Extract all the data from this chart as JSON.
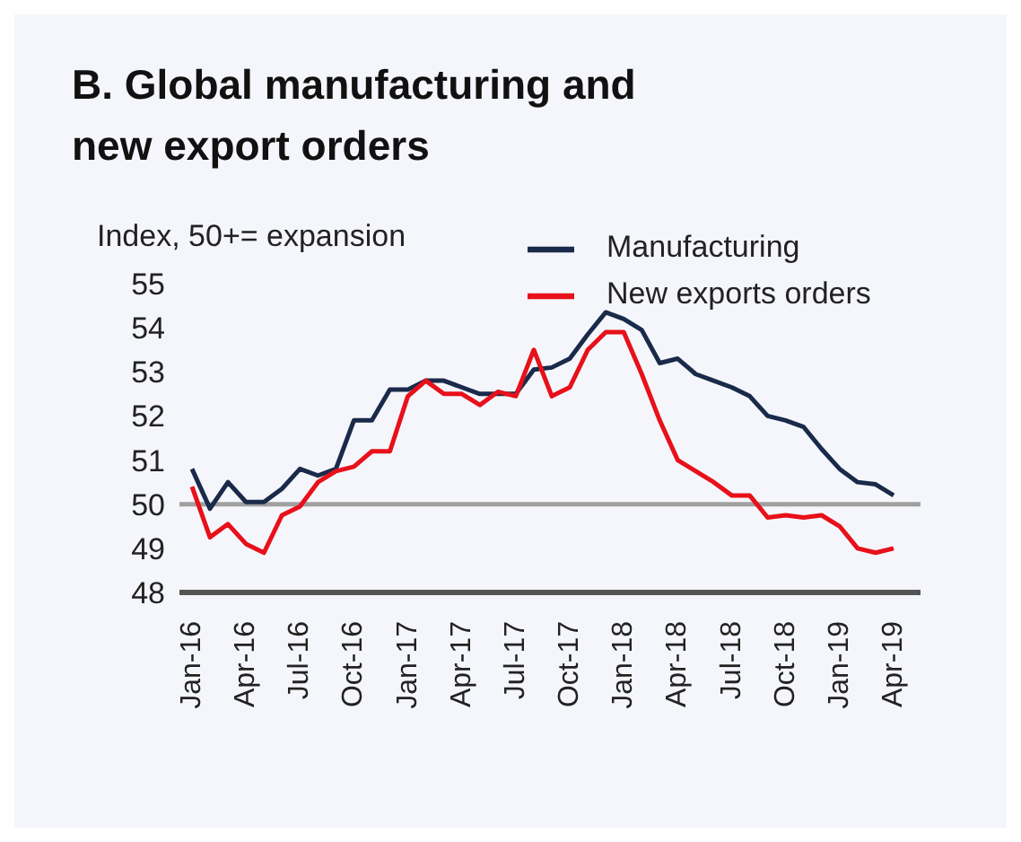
{
  "chart_data": {
    "type": "line",
    "title": "B. Global manufacturing and new export orders",
    "ylabel": "Index, 50+= expansion",
    "categories": [
      "Jan-16",
      null,
      null,
      "Apr-16",
      null,
      null,
      "Jul-16",
      null,
      null,
      "Oct-16",
      null,
      null,
      "Jan-17",
      null,
      null,
      "Apr-17",
      null,
      null,
      "Jul-17",
      null,
      null,
      "Oct-17",
      null,
      null,
      "Jan-18",
      null,
      null,
      "Apr-18",
      null,
      null,
      "Jul-18",
      null,
      null,
      "Oct-18",
      null,
      null,
      "Jan-19",
      null,
      null,
      "Apr-19"
    ],
    "series": [
      {
        "name": "Manufacturing",
        "color": "#1a2a4a",
        "values": [
          50.8,
          49.9,
          50.5,
          50.05,
          50.05,
          50.35,
          50.8,
          50.65,
          50.8,
          51.9,
          51.9,
          52.6,
          52.6,
          52.8,
          52.8,
          52.65,
          52.5,
          52.5,
          52.5,
          53.05,
          53.1,
          53.3,
          53.85,
          54.35,
          54.2,
          53.95,
          53.2,
          53.3,
          52.95,
          52.8,
          52.65,
          52.45,
          52.0,
          51.9,
          51.75,
          51.25,
          50.8,
          50.5,
          50.45,
          50.2
        ]
      },
      {
        "name": "New exports orders",
        "color": "#e8101a",
        "values": [
          50.4,
          49.25,
          49.55,
          49.1,
          48.9,
          49.75,
          49.95,
          50.5,
          50.75,
          50.85,
          51.2,
          51.2,
          52.45,
          52.8,
          52.5,
          52.5,
          52.25,
          52.55,
          52.45,
          53.5,
          52.45,
          52.65,
          53.5,
          53.9,
          53.9,
          52.95,
          51.9,
          51.0,
          50.75,
          50.5,
          50.2,
          50.2,
          49.7,
          49.75,
          49.7,
          49.75,
          49.5,
          49.0,
          48.9,
          49.0
        ]
      }
    ],
    "ylim": [
      48,
      55
    ],
    "yticks": [
      48,
      49,
      50,
      51,
      52,
      53,
      54,
      55
    ],
    "ref_lines": [
      {
        "axis": "y",
        "value": 50,
        "color": "#a0a0a0"
      }
    ],
    "grid": false,
    "legend": "top right",
    "marker": "none",
    "line_style": "solid"
  }
}
